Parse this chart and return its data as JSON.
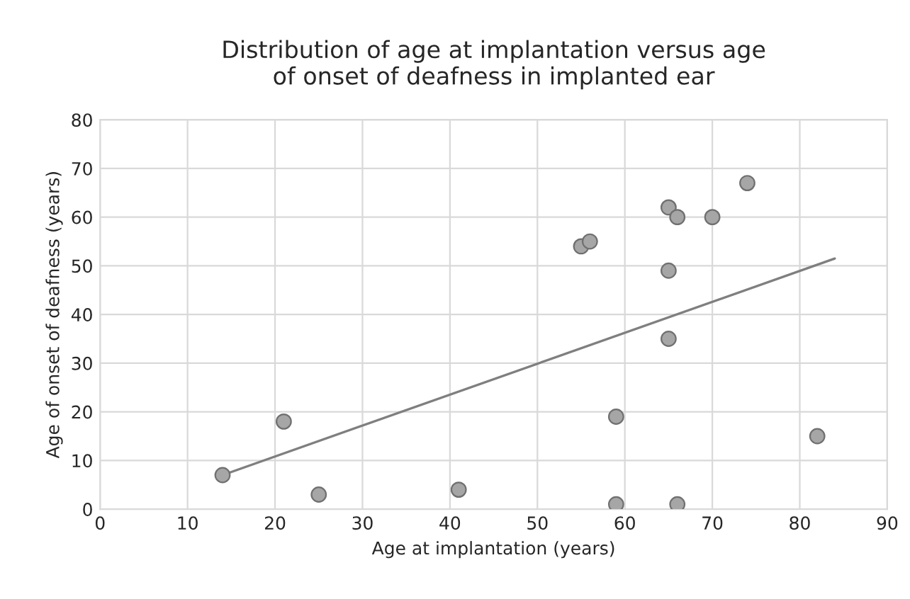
{
  "chart_data": {
    "type": "scatter",
    "title": "Distribution of age at implantation versus age\nof onset of deafness in implanted ear",
    "xlabel": "Age at implantation (years)",
    "ylabel": "Age of onset of deafness (years)",
    "xlim": [
      0,
      90
    ],
    "xticks": [
      0,
      10,
      20,
      30,
      40,
      50,
      60,
      70,
      80,
      90
    ],
    "ylim": [
      0,
      80
    ],
    "yticks": [
      0,
      10,
      20,
      30,
      40,
      50,
      60,
      70,
      80
    ],
    "grid": true,
    "series": [
      {
        "color": "#a6a6a6",
        "marker": "circle",
        "x": [
          14,
          21,
          25,
          41,
          55,
          56,
          59,
          59,
          65,
          66,
          65,
          65,
          70,
          74,
          66,
          82
        ],
        "values": [
          7,
          18,
          3,
          4,
          54,
          55,
          19,
          1,
          62,
          60,
          49,
          35,
          60,
          67,
          1,
          15
        ]
      },
      {
        "type": "line",
        "color": "#7f7f7f",
        "line_style": "solid",
        "x": [
          14,
          84
        ],
        "values": [
          7,
          51.5
        ]
      }
    ]
  }
}
